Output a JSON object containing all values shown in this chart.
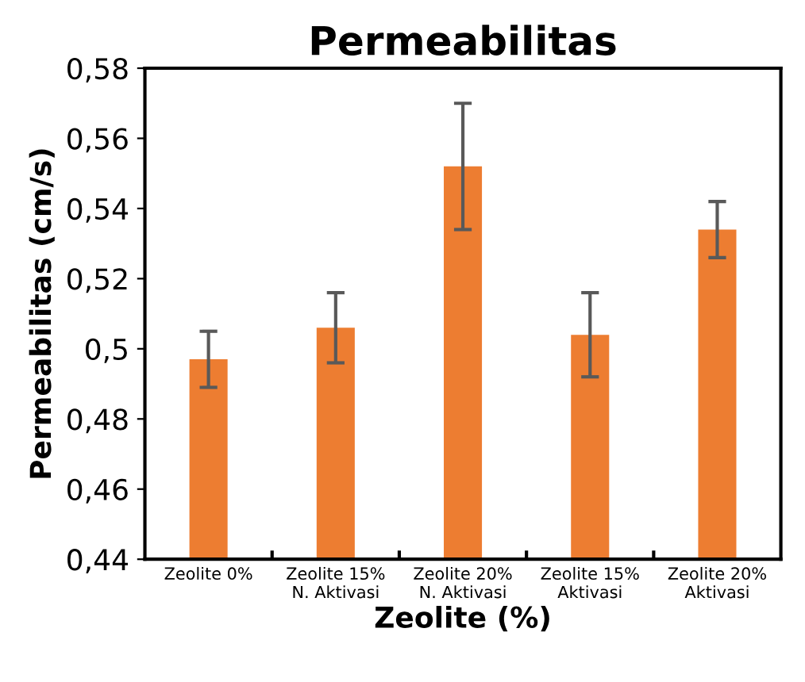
{
  "chart_data": {
    "type": "bar",
    "title": "Permeabilitas",
    "xlabel": "Zeolite (%)",
    "ylabel": "Permeabilitas (cm/s)",
    "categories": [
      "Zeolite 0%",
      "Zeolite 15%\nN. Aktivasi",
      "Zeolite 20%\nN. Aktivasi",
      "Zeolite 15%\nAktivasi",
      "Zeolite 20%\nAktivasi"
    ],
    "values": [
      0.497,
      0.506,
      0.552,
      0.504,
      0.534
    ],
    "errors": [
      0.008,
      0.01,
      0.018,
      0.012,
      0.008
    ],
    "color": "#ed7d31",
    "ylim": [
      0.44,
      0.58
    ],
    "yticks": [
      {
        "value": 0.44,
        "label": "0,44"
      },
      {
        "value": 0.46,
        "label": "0,46"
      },
      {
        "value": 0.48,
        "label": "0,48"
      },
      {
        "value": 0.5,
        "label": "0,5"
      },
      {
        "value": 0.52,
        "label": "0,52"
      },
      {
        "value": 0.54,
        "label": "0,54"
      },
      {
        "value": 0.56,
        "label": "0,56"
      },
      {
        "value": 0.58,
        "label": "0,58"
      }
    ],
    "grid": false
  }
}
